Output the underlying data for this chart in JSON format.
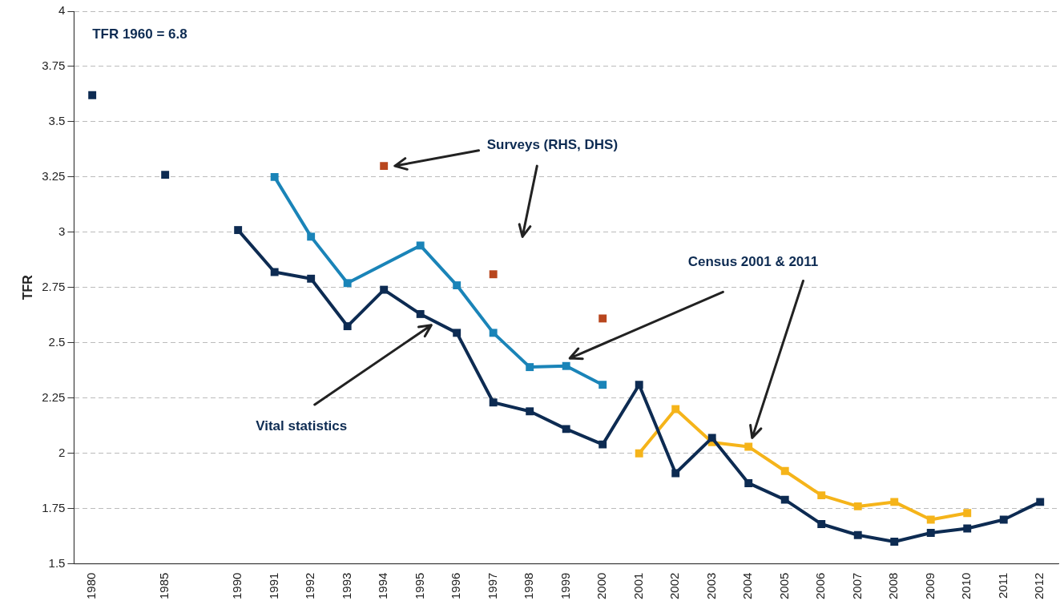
{
  "chart_data": {
    "type": "line",
    "ylabel": "TFR",
    "categories": [
      "1980",
      null,
      "1985",
      null,
      "1990",
      "1991",
      "1992",
      "1993",
      "1994",
      "1995",
      "1996",
      "1997",
      "1998",
      "1999",
      "2000",
      "2001",
      "2002",
      "2003",
      "2004",
      "2005",
      "2006",
      "2007",
      "2008",
      "2009",
      "2010",
      "2011",
      "2012"
    ],
    "series": [
      {
        "type": "scatter",
        "color": "#0d2b52",
        "values": [
          3.62,
          null,
          3.26,
          null,
          null,
          null,
          null,
          null,
          null,
          null,
          null,
          null,
          null,
          null,
          null,
          null,
          null,
          null,
          null,
          null,
          null,
          null,
          null,
          null,
          null,
          null,
          null
        ]
      },
      {
        "color": "#0d2b52",
        "values": [
          null,
          null,
          null,
          null,
          3.01,
          2.82,
          2.79,
          2.575,
          2.74,
          2.63,
          2.545,
          2.23,
          2.19,
          2.11,
          2.04,
          2.31,
          1.91,
          2.07,
          1.865,
          1.79,
          1.68,
          1.63,
          1.6,
          1.64,
          1.66,
          1.7,
          1.78
        ]
      },
      {
        "color": "#1a84b8",
        "values": [
          null,
          null,
          null,
          null,
          null,
          3.25,
          2.98,
          2.77,
          null,
          2.94,
          2.76,
          2.545,
          2.39,
          2.395,
          2.31,
          null,
          null,
          null,
          null,
          null,
          null,
          null,
          null,
          null,
          null,
          null,
          null
        ]
      },
      {
        "type": "scatter",
        "color": "#b8461e",
        "values": [
          null,
          null,
          null,
          null,
          null,
          null,
          null,
          null,
          3.3,
          null,
          null,
          2.81,
          null,
          null,
          2.61,
          null,
          null,
          null,
          null,
          null,
          null,
          null,
          null,
          null,
          null,
          null,
          null
        ]
      },
      {
        "color": "#f5b41a",
        "values": [
          null,
          null,
          null,
          null,
          null,
          null,
          null,
          null,
          null,
          null,
          null,
          null,
          null,
          null,
          null,
          2.0,
          2.2,
          2.05,
          2.03,
          1.92,
          1.81,
          1.76,
          1.78,
          1.7,
          1.73,
          null,
          null
        ]
      }
    ],
    "ylim": [
      1.5,
      4
    ],
    "yticks": [
      1.5,
      1.75,
      2,
      2.25,
      2.5,
      2.75,
      3,
      3.25,
      3.5,
      3.75,
      4
    ],
    "grid": "y",
    "legend": false,
    "marker": "square",
    "line_style": "solid",
    "annotations": [
      "TFR 1960 = 6.8",
      "Surveys (RHS, DHS)",
      "Census 2001 & 2011",
      "Vital statistics"
    ]
  }
}
